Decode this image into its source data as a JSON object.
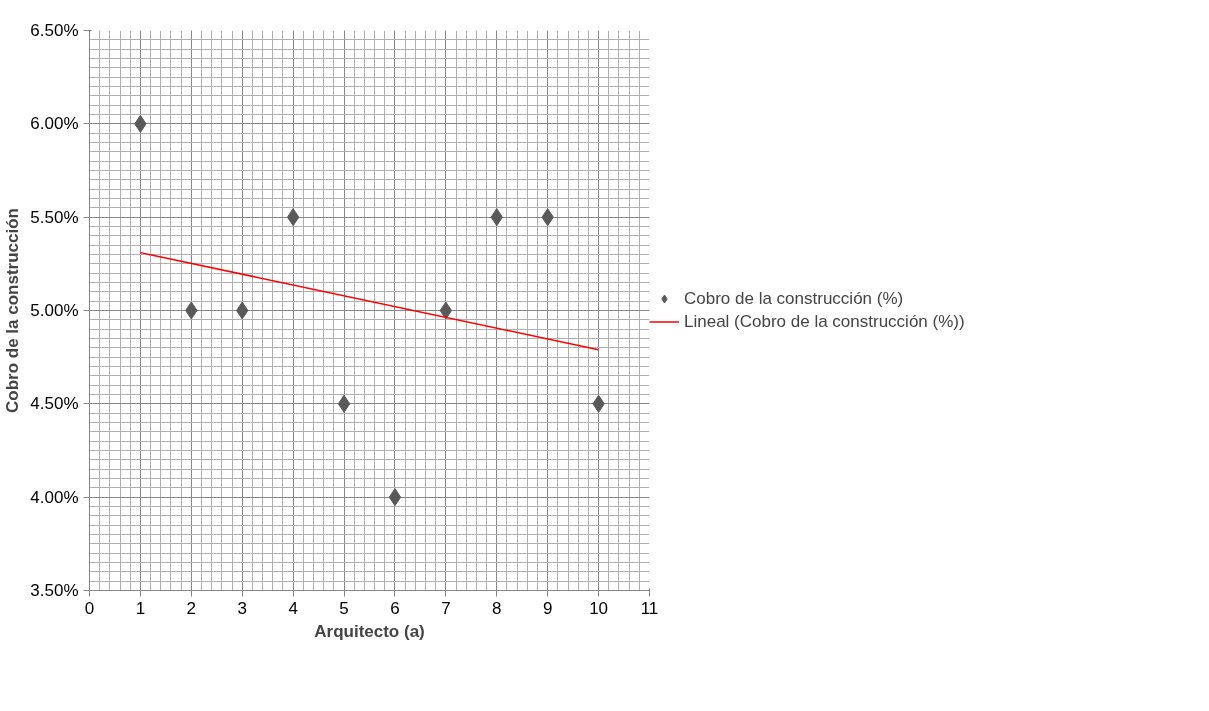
{
  "chart_data": {
    "type": "scatter",
    "xlabel": "Arquitecto (a)",
    "ylabel": "Cobro de la construcción",
    "xlim": [
      0,
      11
    ],
    "xticks": [
      0,
      1,
      2,
      3,
      4,
      5,
      6,
      7,
      8,
      9,
      10,
      11
    ],
    "ylim": [
      3.5,
      6.5
    ],
    "yticks": [
      {
        "value": 3.5,
        "label": "3.50%"
      },
      {
        "value": 4.0,
        "label": "4.00%"
      },
      {
        "value": 4.5,
        "label": "4.50%"
      },
      {
        "value": 5.0,
        "label": "5.00%"
      },
      {
        "value": 5.5,
        "label": "5.50%"
      },
      {
        "value": 6.0,
        "label": "6.00%"
      },
      {
        "value": 6.5,
        "label": "6.50%"
      }
    ],
    "grid": true,
    "legend": "right",
    "series": [
      {
        "name": "Cobro de la construcción (%)",
        "marker": "diamond",
        "color": "#595959",
        "x": [
          1,
          2,
          3,
          4,
          5,
          6,
          7,
          8,
          9,
          10
        ],
        "values": [
          6.0,
          5.0,
          5.0,
          5.5,
          4.5,
          4.0,
          5.0,
          5.5,
          5.5,
          4.5
        ]
      },
      {
        "name": "Lineal (Cobro de la construcción (%))",
        "type": "line",
        "color": "#ff0000",
        "x": [
          1,
          10
        ],
        "values": [
          5.31,
          4.79
        ]
      }
    ]
  }
}
